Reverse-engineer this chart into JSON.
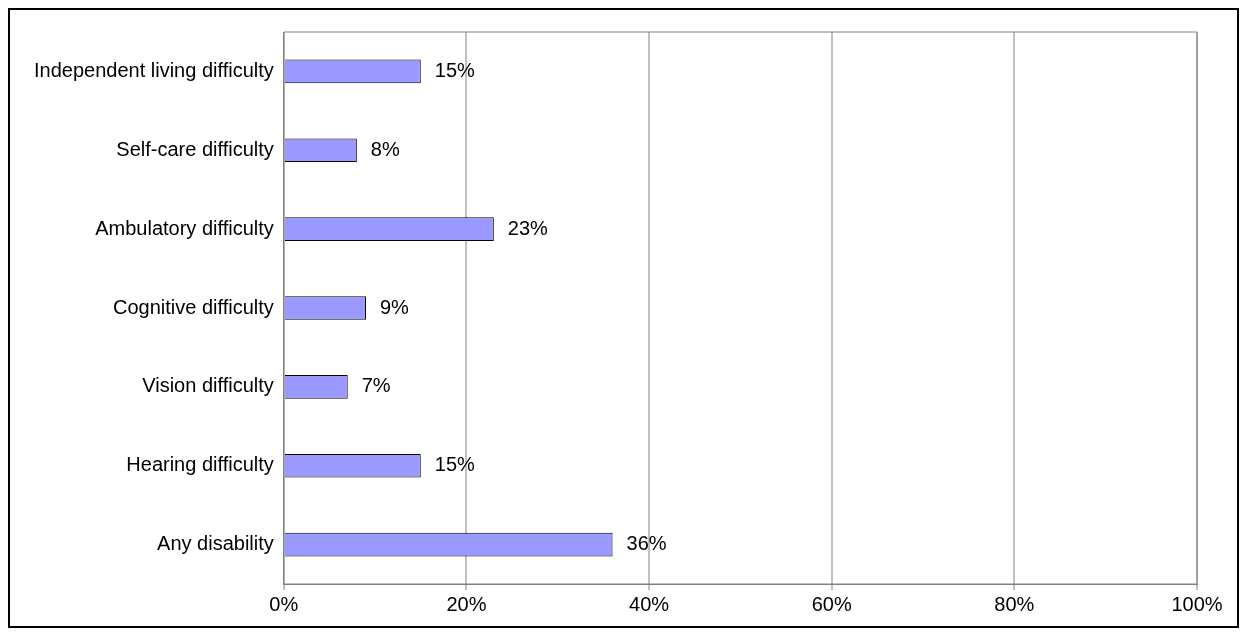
{
  "chart_data": {
    "type": "bar",
    "orientation": "horizontal",
    "categories": [
      "Independent living difficulty",
      "Self-care difficulty",
      "Ambulatory difficulty",
      "Cognitive difficulty",
      "Vision difficulty",
      "Hearing difficulty",
      "Any disability"
    ],
    "values": [
      15,
      8,
      23,
      9,
      7,
      15,
      36
    ],
    "value_labels": [
      "15%",
      "8%",
      "23%",
      "9%",
      "7%",
      "15%",
      "36%"
    ],
    "color": "#9999ff",
    "xlim": [
      0,
      100
    ],
    "xticks": [
      {
        "value": 0,
        "label": "0%"
      },
      {
        "value": 20,
        "label": "20%"
      },
      {
        "value": 40,
        "label": "40%"
      },
      {
        "value": 60,
        "label": "60%"
      },
      {
        "value": 80,
        "label": "80%"
      },
      {
        "value": 100,
        "label": "100%"
      }
    ],
    "grid": "x",
    "legend": false
  }
}
